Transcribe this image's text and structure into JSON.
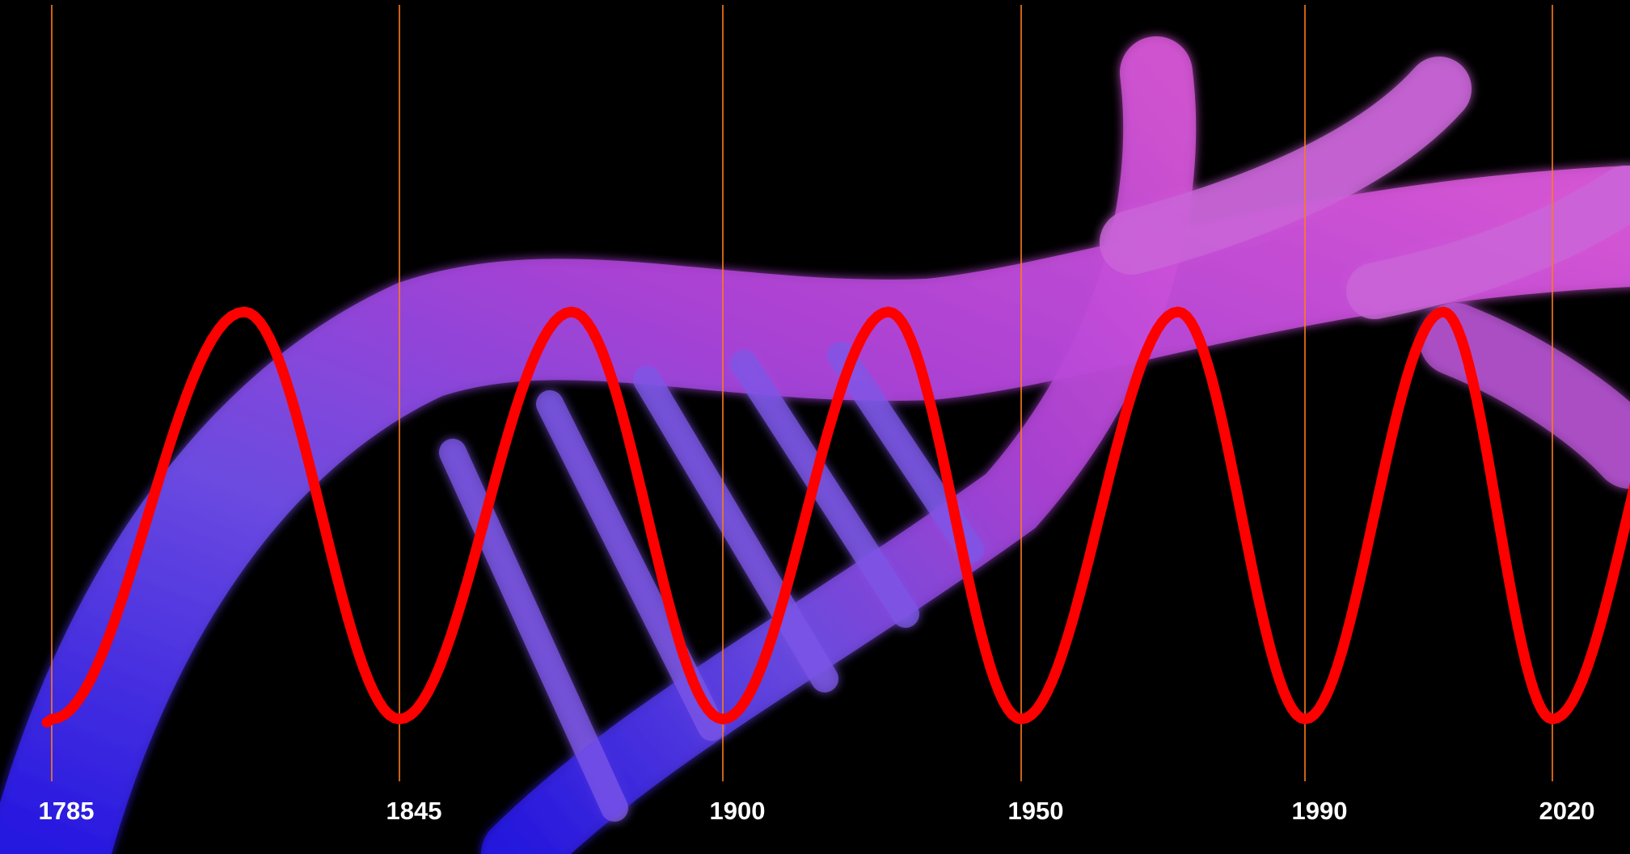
{
  "timeline": {
    "labels": [
      "1785",
      "1845",
      "1900",
      "1950",
      "1990",
      "2020"
    ]
  }
}
